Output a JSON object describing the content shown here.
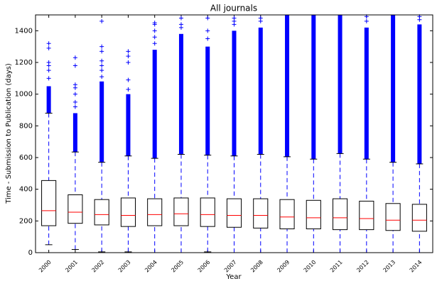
{
  "chart_data": {
    "type": "box",
    "title": "All journals",
    "x_label": "Year",
    "y_label": "Time - Submission to Publication (days)",
    "categories": [
      "2000",
      "2001",
      "2002",
      "2003",
      "2004",
      "2005",
      "2006",
      "2007",
      "2008",
      "2009",
      "2010",
      "2011",
      "2012",
      "2013",
      "2014"
    ],
    "ylim": [
      0,
      1500
    ],
    "yticks": [
      0,
      200,
      400,
      600,
      800,
      1000,
      1200,
      1400
    ],
    "box_color": "#000000",
    "median_color": "#ff0000",
    "whisker_color": "#0000ff",
    "flier_color": "#0000ff",
    "boxes": [
      {
        "whislo": 50,
        "q1": 170,
        "median": 265,
        "q3": 455,
        "whishi": 880,
        "flier_band": [
          880,
          1050
        ],
        "fliers": [
          1100,
          1150,
          1180,
          1200,
          1290,
          1320
        ]
      },
      {
        "whislo": 20,
        "q1": 185,
        "median": 255,
        "q3": 365,
        "whishi": 635,
        "flier_band": [
          635,
          880
        ],
        "fliers": [
          920,
          950,
          1000,
          1040,
          1060,
          1180,
          1230
        ]
      },
      {
        "whislo": 5,
        "q1": 175,
        "median": 240,
        "q3": 335,
        "whishi": 570,
        "flier_band": [
          570,
          1080
        ],
        "fliers": [
          1110,
          1150,
          1180,
          1210,
          1270,
          1300,
          1460
        ]
      },
      {
        "whislo": 5,
        "q1": 165,
        "median": 235,
        "q3": 345,
        "whishi": 610,
        "flier_band": [
          610,
          1000
        ],
        "fliers": [
          1030,
          1090,
          1200,
          1240,
          1270
        ]
      },
      {
        "whislo": 0,
        "q1": 170,
        "median": 240,
        "q3": 340,
        "whishi": 595,
        "flier_band": [
          595,
          1280
        ],
        "fliers": [
          1320,
          1360,
          1400,
          1440,
          1450
        ]
      },
      {
        "whislo": 0,
        "q1": 170,
        "median": 245,
        "q3": 345,
        "whishi": 620,
        "flier_band": [
          620,
          1380
        ],
        "fliers": [
          1420,
          1440,
          1480
        ]
      },
      {
        "whislo": 5,
        "q1": 165,
        "median": 240,
        "q3": 345,
        "whishi": 615,
        "flier_band": [
          615,
          1300
        ],
        "fliers": [
          1350,
          1400,
          1480
        ]
      },
      {
        "whislo": 0,
        "q1": 160,
        "median": 235,
        "q3": 340,
        "whishi": 610,
        "flier_band": [
          610,
          1400
        ],
        "fliers": [
          1440,
          1460,
          1480
        ]
      },
      {
        "whislo": 0,
        "q1": 155,
        "median": 235,
        "q3": 340,
        "whishi": 620,
        "flier_band": [
          620,
          1420
        ],
        "fliers": [
          1460,
          1480
        ]
      },
      {
        "whislo": 0,
        "q1": 150,
        "median": 225,
        "q3": 335,
        "whishi": 605,
        "flier_band": [
          605,
          1500
        ]
      },
      {
        "whislo": 0,
        "q1": 150,
        "median": 220,
        "q3": 330,
        "whishi": 590,
        "flier_band": [
          590,
          1500
        ]
      },
      {
        "whislo": 0,
        "q1": 145,
        "median": 220,
        "q3": 340,
        "whishi": 625,
        "flier_band": [
          625,
          1500
        ]
      },
      {
        "whislo": 0,
        "q1": 145,
        "median": 215,
        "q3": 325,
        "whishi": 590,
        "flier_band": [
          590,
          1420
        ],
        "fliers": [
          1460,
          1490
        ]
      },
      {
        "whislo": 0,
        "q1": 140,
        "median": 205,
        "q3": 310,
        "whishi": 570,
        "flier_band": [
          570,
          1500
        ]
      },
      {
        "whislo": 0,
        "q1": 135,
        "median": 205,
        "q3": 305,
        "whishi": 560,
        "flier_band": [
          560,
          1440
        ],
        "fliers": [
          1470,
          1490
        ]
      }
    ]
  }
}
